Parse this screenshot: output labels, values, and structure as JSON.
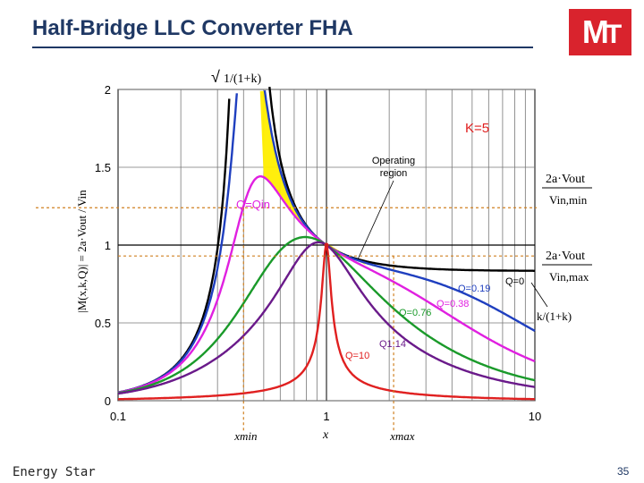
{
  "slide": {
    "title": "Half-Bridge LLC Converter FHA",
    "footer_left": "Energy Star",
    "page_number": "35",
    "logo_text": "M-T",
    "accent_color": "#d9232d",
    "title_color": "#1f3864"
  },
  "chart_data": {
    "type": "line",
    "x_scale": "log",
    "xlim": [
      0.1,
      10
    ],
    "ylim": [
      0,
      2
    ],
    "x_ticks": [
      {
        "value": 0.1,
        "label": "0.1"
      },
      {
        "value": 1,
        "label": "1"
      },
      {
        "value": 10,
        "label": "10"
      }
    ],
    "y_ticks": [
      {
        "value": 0,
        "label": "0"
      },
      {
        "value": 0.5,
        "label": "0.5"
      },
      {
        "value": 1,
        "label": "1"
      },
      {
        "value": 1.5,
        "label": "1.5"
      },
      {
        "value": 2,
        "label": "2"
      }
    ],
    "ylabel": "|M(x,k,Q)| = 2a·Vout / Vin",
    "xlabel": "x",
    "k": 5,
    "grid": true,
    "series": [
      {
        "name": "Q=0",
        "color": "#000000",
        "Q": 0
      },
      {
        "name": "Q=0.19",
        "color": "#1f3fbf",
        "Q": 0.19
      },
      {
        "name": "Q=0.38",
        "color": "#e020e0",
        "Q": 0.38
      },
      {
        "name": "Q=0.76",
        "color": "#1a9a2a",
        "Q": 0.76
      },
      {
        "name": "Q1.14",
        "color": "#6a1a8a",
        "Q": 1.14
      },
      {
        "name": "Q=10",
        "color": "#e02020",
        "Q": 10
      }
    ],
    "annotations": {
      "k_label": "K=5",
      "peak_label": "√1/(1+k)",
      "operating_region": [
        "Operating",
        "region"
      ],
      "q_in_label": "Q=Qin",
      "vin_min_label": [
        "2a·Vout",
        "Vin,min"
      ],
      "vin_max_label": [
        "2a·Vout",
        "Vin,max"
      ],
      "asymptote_label": "k/(1+k)",
      "xmin_label": "xmin",
      "xmax_label": "xmax",
      "x_label": "x"
    },
    "ref_lines": {
      "y_vin_min": 1.24,
      "y_vin_max": 0.93,
      "x_min": 0.4,
      "x_max": 2.1
    }
  }
}
